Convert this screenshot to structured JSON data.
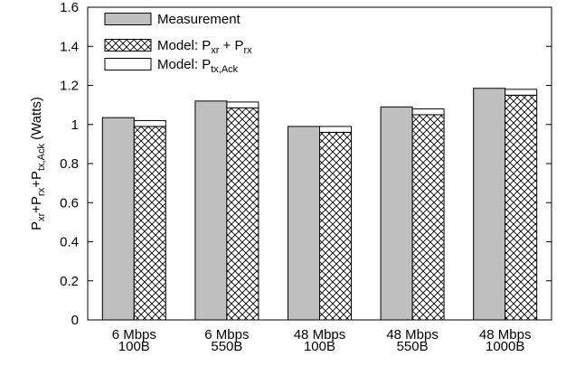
{
  "chart_data": {
    "type": "bar",
    "stacked_model": true,
    "categories": [
      [
        "6 Mbps",
        "100B"
      ],
      [
        "6 Mbps",
        "550B"
      ],
      [
        "48 Mbps",
        "100B"
      ],
      [
        "48 Mbps",
        "550B"
      ],
      [
        "48 Mbps",
        "1000B"
      ]
    ],
    "ylabel": {
      "parts": [
        {
          "t": "P"
        },
        {
          "t": "xr",
          "sub": true
        },
        {
          "t": "+P"
        },
        {
          "t": "rx",
          "sub": true
        },
        {
          "t": "+P"
        },
        {
          "t": "tx,Ack",
          "sub": true
        },
        {
          "t": " (Watts)"
        }
      ]
    },
    "ylim": [
      0,
      1.6
    ],
    "yticks": [
      "0",
      "0.2",
      "0.4",
      "0.6",
      "0.8",
      "1",
      "1.2",
      "1.4",
      "1.6"
    ],
    "series": [
      {
        "name": "Measurement",
        "legend_parts": [
          {
            "t": "Measurement"
          }
        ],
        "fill": "#bfbfbf",
        "values": [
          1.035,
          1.12,
          0.99,
          1.09,
          1.185
        ]
      },
      {
        "name": "Model: Pxr + Prx",
        "legend_parts": [
          {
            "t": "Model: P"
          },
          {
            "t": "xr",
            "sub": true
          },
          {
            "t": " + P"
          },
          {
            "t": "rx",
            "sub": true
          }
        ],
        "fill": "crosshatch",
        "values": [
          0.99,
          1.085,
          0.96,
          1.05,
          1.15
        ]
      },
      {
        "name": "Model: Ptx,Ack",
        "legend_parts": [
          {
            "t": "Model: P"
          },
          {
            "t": "tx,Ack",
            "sub": true
          }
        ],
        "fill": "#ffffff",
        "stacked_on": "Model: Pxr + Prx",
        "values": [
          0.03,
          0.03,
          0.03,
          0.03,
          0.03
        ]
      }
    ],
    "legend_position": "top-left",
    "grid": false
  }
}
